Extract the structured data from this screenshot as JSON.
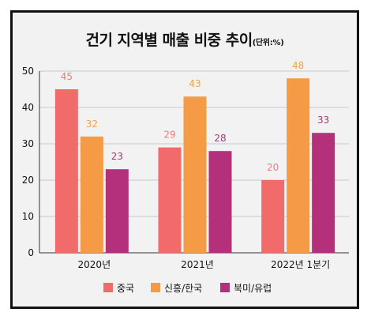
{
  "title": "건기 지역별 매출 비중 추이",
  "unit": "(단위:%)",
  "colors": {
    "background": "#f2f2f2",
    "grid": "#c8c8c8",
    "axis": "#333333"
  },
  "chart_data": {
    "type": "bar",
    "title": "건기 지역별 매출 비중 추이",
    "unit": "(단위:%)",
    "categories": [
      "2020년",
      "2021년",
      "2022년 1분기"
    ],
    "series": [
      {
        "name": "중국",
        "values": [
          45,
          29,
          20
        ],
        "color": "#f26b6b",
        "label_color": "#f07a7a"
      },
      {
        "name": "신흥/한국",
        "values": [
          32,
          43,
          48
        ],
        "color": "#f59a45",
        "label_color": "#f0a24a"
      },
      {
        "name": "북미/유럽",
        "values": [
          23,
          28,
          33
        ],
        "color": "#b5307a",
        "label_color": "#a03a7a"
      }
    ],
    "ylim": [
      0,
      50
    ],
    "yticks": [
      0,
      10,
      20,
      30,
      40,
      50
    ],
    "grid": true,
    "legend": "bottom"
  }
}
